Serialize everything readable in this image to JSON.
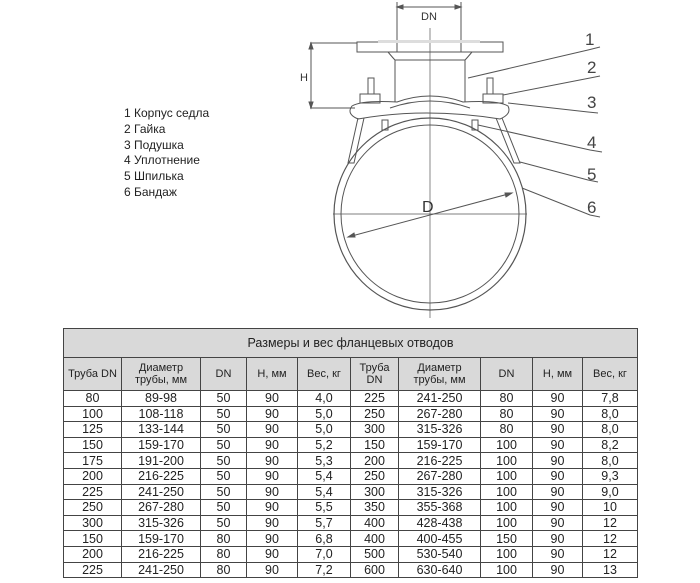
{
  "drawing": {
    "dim_dn": "DN",
    "dim_h": "H",
    "dim_d": "D",
    "callouts": [
      "1",
      "2",
      "3",
      "4",
      "5",
      "6"
    ]
  },
  "legend": [
    "1 Корпус седла",
    "2 Гайка",
    "3 Подушка",
    "4 Уплотнение",
    "5 Шпилька",
    "6 Бандаж"
  ],
  "table": {
    "title": "Размеры и вес фланцевых отводов",
    "headers": [
      "Труба DN",
      "Диаметр трубы, мм",
      "DN",
      "H, мм",
      "Вес, кг",
      "Труба DN",
      "Диаметр трубы, мм",
      "DN",
      "H, мм",
      "Вес, кг"
    ],
    "rows": [
      [
        "80",
        "89-98",
        "50",
        "90",
        "4,0",
        "225",
        "241-250",
        "80",
        "90",
        "7,8"
      ],
      [
        "100",
        "108-118",
        "50",
        "90",
        "5,0",
        "250",
        "267-280",
        "80",
        "90",
        "8,0"
      ],
      [
        "125",
        "133-144",
        "50",
        "90",
        "5,0",
        "300",
        "315-326",
        "80",
        "90",
        "8,0"
      ],
      [
        "150",
        "159-170",
        "50",
        "90",
        "5,2",
        "150",
        "159-170",
        "100",
        "90",
        "8,2"
      ],
      [
        "175",
        "191-200",
        "50",
        "90",
        "5,3",
        "200",
        "216-225",
        "100",
        "90",
        "8,0"
      ],
      [
        "200",
        "216-225",
        "50",
        "90",
        "5,4",
        "250",
        "267-280",
        "100",
        "90",
        "9,3"
      ],
      [
        "225",
        "241-250",
        "50",
        "90",
        "5,4",
        "300",
        "315-326",
        "100",
        "90",
        "9,0"
      ],
      [
        "250",
        "267-280",
        "50",
        "90",
        "5,5",
        "350",
        "355-368",
        "100",
        "90",
        "10"
      ],
      [
        "300",
        "315-326",
        "50",
        "90",
        "5,7",
        "400",
        "428-438",
        "100",
        "90",
        "12"
      ],
      [
        "150",
        "159-170",
        "80",
        "90",
        "6,8",
        "400",
        "400-455",
        "150",
        "90",
        "12"
      ],
      [
        "200",
        "216-225",
        "80",
        "90",
        "7,0",
        "500",
        "530-540",
        "100",
        "90",
        "12"
      ],
      [
        "225",
        "241-250",
        "80",
        "90",
        "7,2",
        "600",
        "630-640",
        "100",
        "90",
        "13"
      ]
    ]
  }
}
